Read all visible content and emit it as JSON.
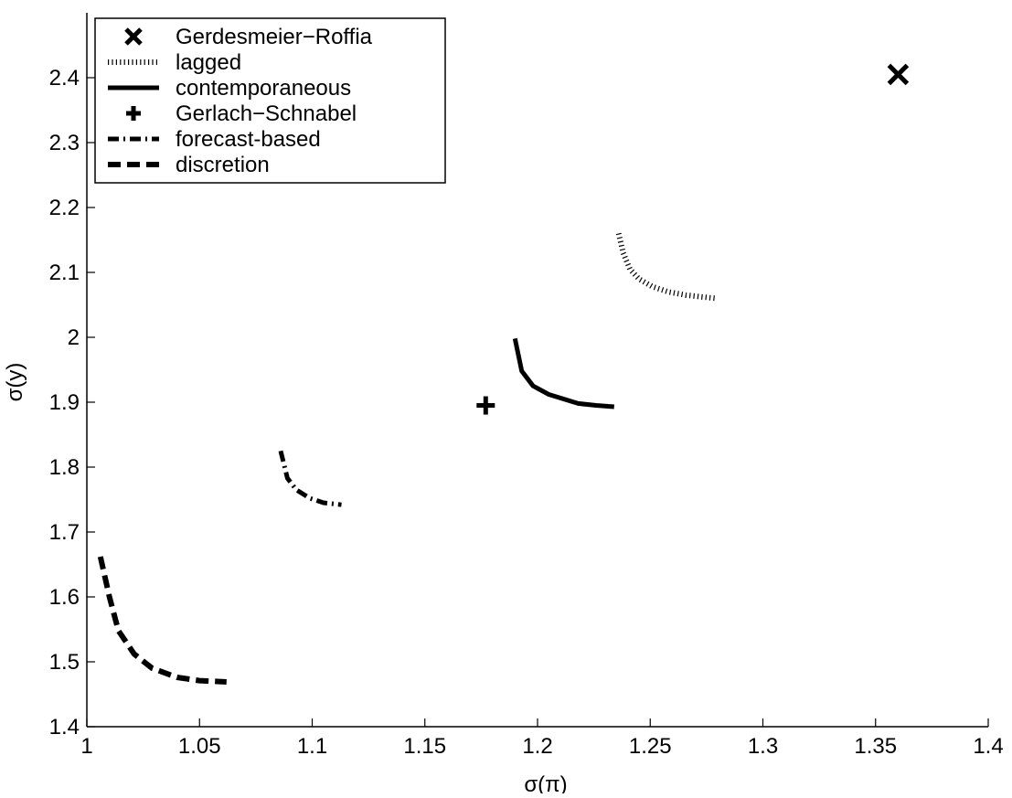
{
  "chart_data": {
    "type": "line",
    "title": "",
    "xlabel": "σ(π)",
    "ylabel": "σ(y)",
    "xlim": [
      1,
      1.4
    ],
    "ylim": [
      1.4,
      2.5
    ],
    "xticks": [
      1,
      1.05,
      1.1,
      1.15,
      1.2,
      1.25,
      1.3,
      1.35,
      1.4
    ],
    "xtick_labels": [
      "1",
      "1.05",
      "1.1",
      "1.15",
      "1.2",
      "1.25",
      "1.3",
      "1.35",
      "1.4"
    ],
    "yticks": [
      1.4,
      1.5,
      1.6,
      1.7,
      1.8,
      1.9,
      2.0,
      2.1,
      2.2,
      2.3,
      2.4
    ],
    "ytick_labels": [
      "1.4",
      "1.5",
      "1.6",
      "1.7",
      "1.8",
      "1.9",
      "2",
      "2.1",
      "2.2",
      "2.3",
      "2.4"
    ],
    "grid": false,
    "legend_position": "top-left",
    "series": [
      {
        "name": "Gerdesmeier−Roffia",
        "kind": "marker",
        "marker": "x",
        "x": [
          1.36
        ],
        "y": [
          2.405
        ]
      },
      {
        "name": "lagged",
        "kind": "line",
        "style": "dotted",
        "x": [
          1.236,
          1.238,
          1.241,
          1.245,
          1.251,
          1.258,
          1.266,
          1.279
        ],
        "y": [
          2.16,
          2.13,
          2.105,
          2.09,
          2.078,
          2.07,
          2.065,
          2.06
        ]
      },
      {
        "name": "contemporaneous",
        "kind": "line",
        "style": "solid",
        "x": [
          1.19,
          1.193,
          1.198,
          1.205,
          1.218,
          1.226,
          1.234
        ],
        "y": [
          1.998,
          1.948,
          1.925,
          1.912,
          1.898,
          1.895,
          1.893
        ]
      },
      {
        "name": "Gerlach−Schnabel",
        "kind": "marker",
        "marker": "plus",
        "x": [
          1.177
        ],
        "y": [
          1.895
        ]
      },
      {
        "name": "forecast-based",
        "kind": "line",
        "style": "dashdot",
        "x": [
          1.086,
          1.089,
          1.093,
          1.099,
          1.105,
          1.113
        ],
        "y": [
          1.825,
          1.783,
          1.765,
          1.752,
          1.745,
          1.742
        ]
      },
      {
        "name": "discretion",
        "kind": "line",
        "style": "dashed",
        "x": [
          1.006,
          1.01,
          1.014,
          1.021,
          1.029,
          1.04,
          1.05,
          1.062
        ],
        "y": [
          1.662,
          1.6,
          1.548,
          1.512,
          1.49,
          1.476,
          1.471,
          1.469
        ]
      }
    ]
  }
}
